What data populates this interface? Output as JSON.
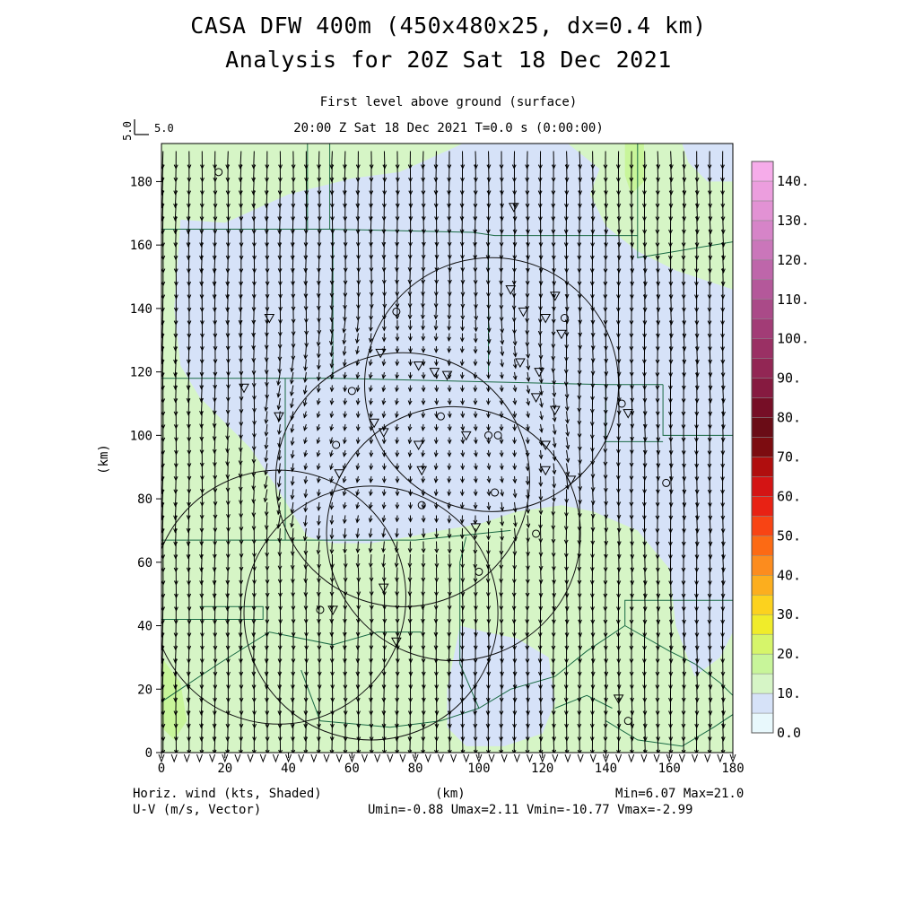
{
  "header": {
    "title_line1": "CASA DFW 400m (450x480x25, dx=0.4 km)",
    "title_line2": "Analysis for 20Z Sat 18 Dec 2021",
    "subtitle_line1": "First level above ground (surface)",
    "subtitle_line2": "20:00 Z Sat 18 Dec 2021    T=0.0 s (0:00:00)",
    "vector_scale_value": "5.0",
    "vector_scale_label": "5.0"
  },
  "footer": {
    "left_line1": "Horiz. wind (kts, Shaded)",
    "left_line2": "U-V (m/s, Vector)",
    "center": "(km)",
    "right_line1": "Min=6.07 Max=21.0",
    "right_line2": "Umin=-0.88 Umax=2.11 Vmin=-10.77 Vmax=-2.99"
  },
  "chart_data": {
    "type": "heatmap",
    "title": "CASA DFW 400m (450x480x25, dx=0.4 km)",
    "xlabel": "(km)",
    "ylabel": "(km)",
    "xlim": [
      0,
      180
    ],
    "ylim": [
      0,
      192
    ],
    "x_ticks": [
      "0",
      "20",
      "40",
      "60",
      "80",
      "100",
      "120",
      "140",
      "160",
      "180"
    ],
    "y_ticks": [
      "0",
      "20",
      "40",
      "60",
      "80",
      "100",
      "120",
      "140",
      "160",
      "180"
    ],
    "field": "Horiz. wind (kts, Shaded)",
    "vectors": "U-V (m/s, Vector)",
    "min": 6.07,
    "max": 21.0,
    "umin": -0.88,
    "umax": 2.11,
    "vmin": -10.77,
    "vmax": -2.99,
    "colorbar": {
      "labels": [
        "0.0",
        "10.",
        "20.",
        "30.",
        "40.",
        "50.",
        "60.",
        "70.",
        "80.",
        "90.",
        "100.",
        "110.",
        "120.",
        "130.",
        "140."
      ],
      "range": [
        0,
        145
      ],
      "step": 5,
      "colors": [
        "#e8f8fc",
        "#d6e2f8",
        "#d6f5c6",
        "#c8f59a",
        "#d6f56a",
        "#f0ec2a",
        "#fcd21e",
        "#fcae1e",
        "#fc8c1e",
        "#fc6a14",
        "#f84414",
        "#e82214",
        "#d41414",
        "#b00e0e",
        "#7c0c10",
        "#6a0c16",
        "#760e26",
        "#861a40",
        "#922654",
        "#9a3064",
        "#a23c76",
        "#aa4a88",
        "#b4589a",
        "#be66aa",
        "#ca76ba",
        "#d684c8",
        "#e292d4",
        "#ec9ede",
        "#f6acea"
      ]
    },
    "radar_circles_center_km": [
      [
        104,
        116
      ],
      [
        76,
        86
      ],
      [
        92,
        69
      ],
      [
        37,
        49
      ],
      [
        66,
        44
      ]
    ],
    "station_markers": [
      [
        18,
        183,
        "circle"
      ],
      [
        74,
        139,
        "circle"
      ],
      [
        34,
        137,
        "triangle"
      ],
      [
        69,
        126,
        "triangle"
      ],
      [
        81,
        122,
        "triangle"
      ],
      [
        86,
        120,
        "triangle"
      ],
      [
        90,
        119,
        "triangle"
      ],
      [
        60,
        114,
        "circle"
      ],
      [
        26,
        115,
        "triangle"
      ],
      [
        37,
        106,
        "triangle"
      ],
      [
        67,
        104,
        "triangle"
      ],
      [
        70,
        101,
        "triangle"
      ],
      [
        88,
        106,
        "circle"
      ],
      [
        81,
        97,
        "triangle"
      ],
      [
        55,
        97,
        "circle"
      ],
      [
        56,
        88,
        "triangle"
      ],
      [
        82,
        89,
        "triangle"
      ],
      [
        103,
        100,
        "circle"
      ],
      [
        106,
        100,
        "circle"
      ],
      [
        96,
        100,
        "triangle"
      ],
      [
        105,
        82,
        "circle"
      ],
      [
        82,
        78,
        "circle"
      ],
      [
        99,
        71,
        "triangle"
      ],
      [
        118,
        69,
        "circle"
      ],
      [
        100,
        57,
        "circle"
      ],
      [
        70,
        52,
        "triangle"
      ],
      [
        50,
        45,
        "circle"
      ],
      [
        54,
        45,
        "triangle"
      ],
      [
        74,
        35,
        "triangle"
      ],
      [
        111,
        172,
        "triangle"
      ],
      [
        110,
        146,
        "triangle"
      ],
      [
        114,
        139,
        "triangle"
      ],
      [
        121,
        137,
        "triangle"
      ],
      [
        124,
        144,
        "triangle"
      ],
      [
        127,
        137,
        "circle"
      ],
      [
        126,
        132,
        "triangle"
      ],
      [
        113,
        123,
        "triangle"
      ],
      [
        119,
        120,
        "triangle"
      ],
      [
        118,
        112,
        "triangle"
      ],
      [
        124,
        108,
        "triangle"
      ],
      [
        121,
        97,
        "triangle"
      ],
      [
        121,
        89,
        "triangle"
      ],
      [
        129,
        86,
        "triangle"
      ],
      [
        145,
        110,
        "circle"
      ],
      [
        147,
        107,
        "triangle"
      ],
      [
        159,
        85,
        "circle"
      ],
      [
        144,
        17,
        "triangle"
      ],
      [
        147,
        10,
        "circle"
      ]
    ]
  }
}
